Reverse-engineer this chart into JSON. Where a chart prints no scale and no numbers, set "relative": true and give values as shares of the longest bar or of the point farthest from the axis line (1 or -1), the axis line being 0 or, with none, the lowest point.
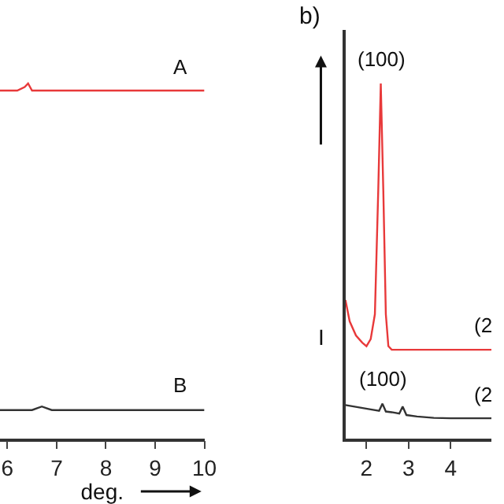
{
  "chart_data": [
    {
      "type": "line",
      "relative": true,
      "xlabel": "deg.",
      "xlim": [
        5.85,
        10
      ],
      "xticks": [
        6,
        7,
        8,
        9,
        10
      ],
      "tick_labels": "x",
      "series": [
        {
          "color": "#e8393a",
          "x": [
            5.85,
            6.2,
            6.35,
            6.42,
            6.5,
            6.7,
            7.5,
            8.5,
            9.5,
            10
          ],
          "values": [
            0.98,
            0.98,
            0.99,
            1.0,
            0.98,
            0.98,
            0.98,
            0.98,
            0.98,
            0.98
          ]
        },
        {
          "color": "#333333",
          "x": [
            5.85,
            6.5,
            6.7,
            6.9,
            7.5,
            8.5,
            9.5,
            10
          ],
          "values": [
            0.08,
            0.08,
            0.09,
            0.08,
            0.08,
            0.08,
            0.08,
            0.08
          ]
        }
      ],
      "annotations": [
        {
          "text": "A",
          "x": 9.5,
          "y": 0.98
        },
        {
          "text": "B",
          "x": 9.5,
          "y": 0.08
        }
      ]
    },
    {
      "type": "line",
      "relative": true,
      "ylabel": "I",
      "xlim": [
        1.5,
        4.97
      ],
      "xticks": [
        2,
        3,
        4
      ],
      "tick_labels": "x",
      "series": [
        {
          "color": "#e8393a",
          "x": [
            1.5,
            1.6,
            1.75,
            1.9,
            2.0,
            2.1,
            2.2,
            2.28,
            2.34,
            2.4,
            2.46,
            2.52,
            2.6,
            2.8,
            3.2,
            3.6,
            4.0,
            4.5,
            4.97
          ],
          "values": [
            0.39,
            0.33,
            0.29,
            0.27,
            0.26,
            0.28,
            0.35,
            0.7,
            1.0,
            0.7,
            0.35,
            0.26,
            0.25,
            0.25,
            0.25,
            0.25,
            0.25,
            0.25,
            0.25
          ]
        },
        {
          "color": "#333333",
          "x": [
            1.5,
            1.8,
            2.1,
            2.3,
            2.38,
            2.46,
            2.6,
            2.78,
            2.86,
            2.95,
            3.2,
            3.6,
            4.0,
            4.5,
            4.97
          ],
          "values": [
            0.094,
            0.088,
            0.082,
            0.078,
            0.098,
            0.076,
            0.074,
            0.07,
            0.09,
            0.066,
            0.062,
            0.058,
            0.057,
            0.057,
            0.057
          ]
        }
      ],
      "annotations": [
        "b)",
        {
          "text": "(100)",
          "x": 2.34,
          "y": 1.0
        },
        {
          "text": "(100)",
          "x": 2.38,
          "y": 0.098
        },
        {
          "text": "(2",
          "x": 4.5,
          "y": 0.25
        },
        {
          "text": "(2",
          "x": 4.5,
          "y": 0.057
        }
      ]
    }
  ]
}
